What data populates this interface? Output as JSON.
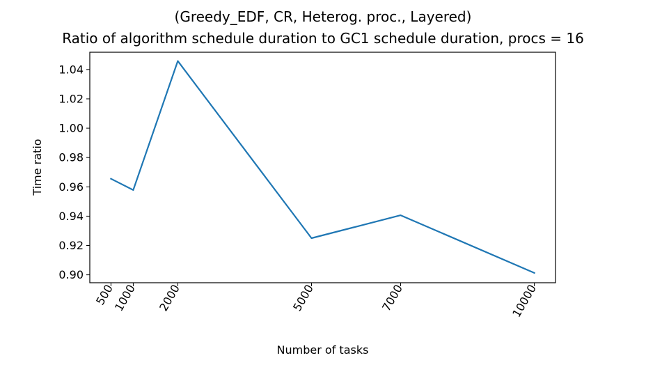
{
  "chart_data": {
    "type": "line",
    "title": "(Greedy_EDF, CR, Heterog. proc., Layered)",
    "subtitle": "Ratio of algorithm schedule duration to GC1 schedule duration, procs = 16",
    "xlabel": "Number of tasks",
    "ylabel": "Time ratio",
    "x": [
      500,
      1000,
      2000,
      5000,
      7000,
      10000
    ],
    "x_tick_labels": [
      "500",
      "1000",
      "2000",
      "5000",
      "7000",
      "10000"
    ],
    "y_ticks": [
      0.9,
      0.92,
      0.94,
      0.96,
      0.98,
      1.0,
      1.02,
      1.04
    ],
    "y_tick_labels": [
      "0.90",
      "0.92",
      "0.94",
      "0.96",
      "0.98",
      "1.00",
      "1.02",
      "1.04"
    ],
    "xlim": [
      25,
      10475
    ],
    "ylim": [
      0.8946,
      1.0518
    ],
    "grid": false,
    "series": [
      {
        "values": [
          0.9655,
          0.9578,
          1.0458,
          0.925,
          0.9406,
          0.9013
        ],
        "color": "#1f77b4"
      }
    ]
  }
}
